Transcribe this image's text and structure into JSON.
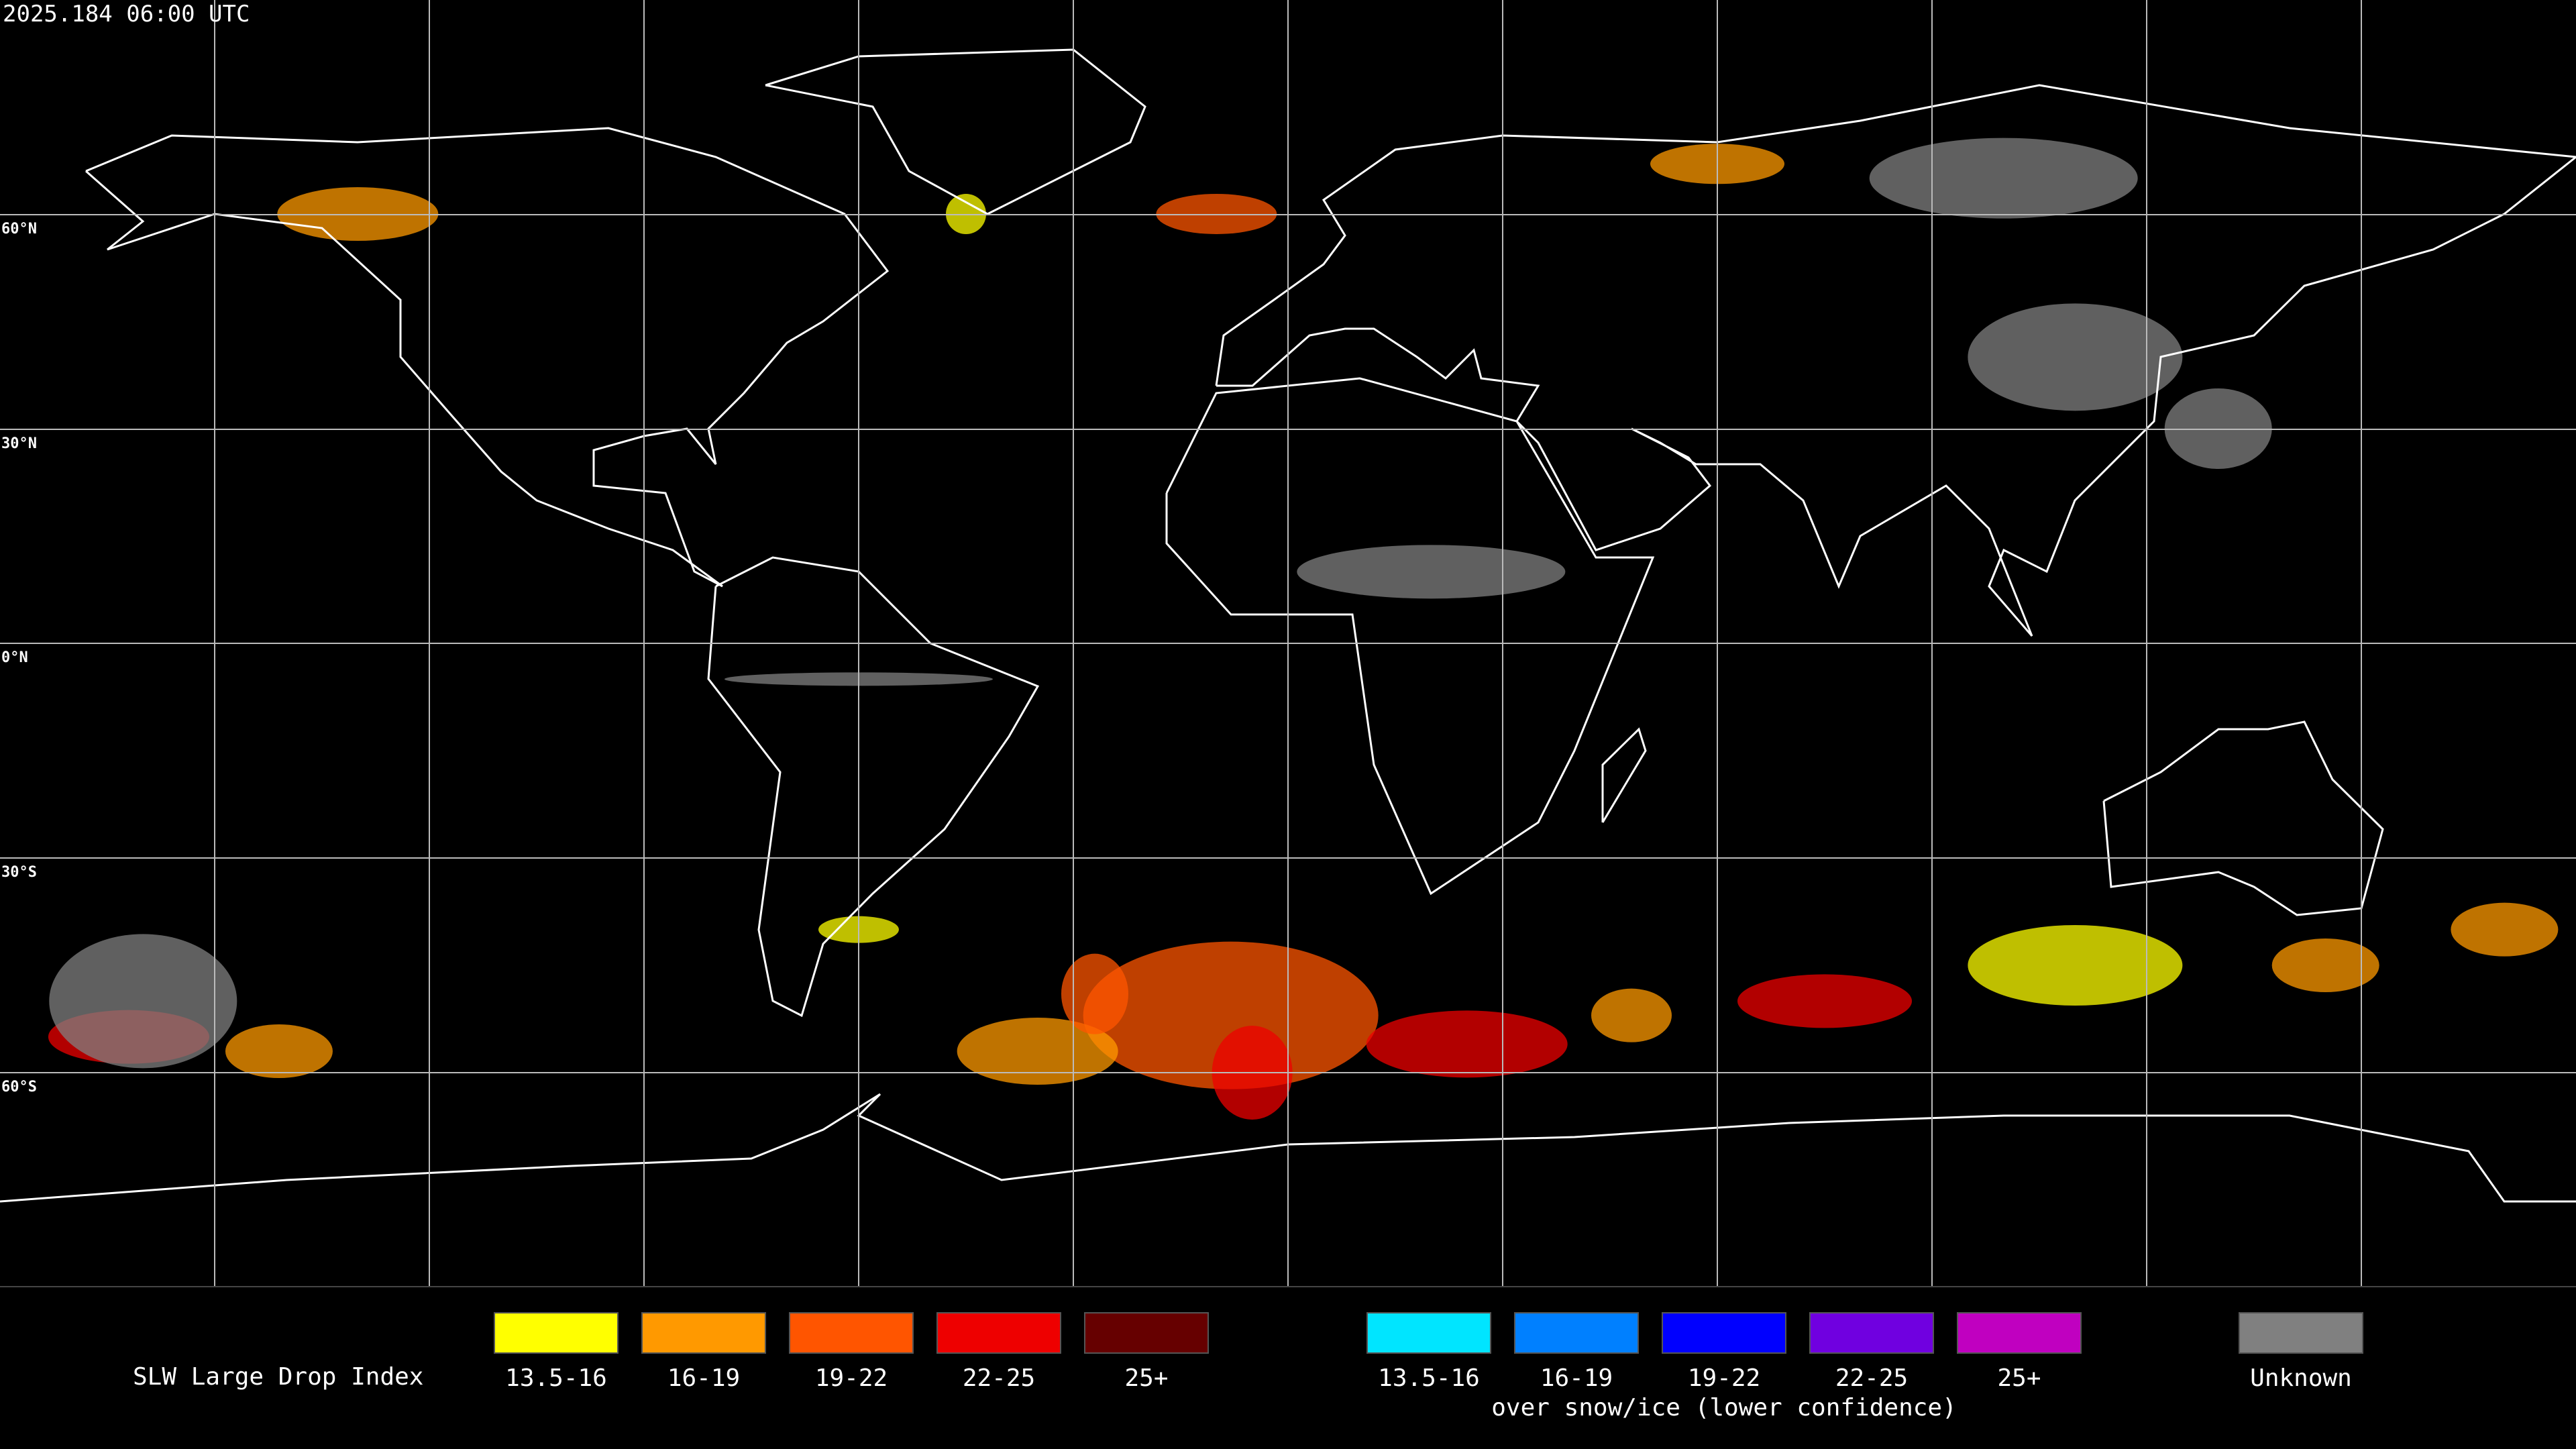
{
  "header": {
    "timestamp": "2025.184 06:00 UTC"
  },
  "map": {
    "lat_labels": [
      "60°N",
      "30°N",
      "0°N",
      "30°S",
      "60°S"
    ]
  },
  "legend": {
    "title": "SLW Large Drop Index",
    "groups": [
      {
        "items": [
          {
            "label": "13.5-16",
            "color": "#ffff00"
          },
          {
            "label": "16-19",
            "color": "#ff9900"
          },
          {
            "label": "19-22",
            "color": "#ff5500"
          },
          {
            "label": "22-25",
            "color": "#ee0000"
          },
          {
            "label": "25+",
            "color": "#660000"
          }
        ]
      },
      {
        "items": [
          {
            "label": "13.5-16",
            "color": "#00e5ff"
          },
          {
            "label": "16-19",
            "color": "#0080ff"
          },
          {
            "label": "19-22",
            "color": "#0000ff"
          },
          {
            "label": "22-25",
            "color": "#7000e0"
          },
          {
            "label": "25+",
            "color": "#c000c0"
          }
        ],
        "note": "over snow/ice (lower confidence)"
      }
    ],
    "unknown": {
      "label": "Unknown",
      "color": "#808080"
    }
  }
}
